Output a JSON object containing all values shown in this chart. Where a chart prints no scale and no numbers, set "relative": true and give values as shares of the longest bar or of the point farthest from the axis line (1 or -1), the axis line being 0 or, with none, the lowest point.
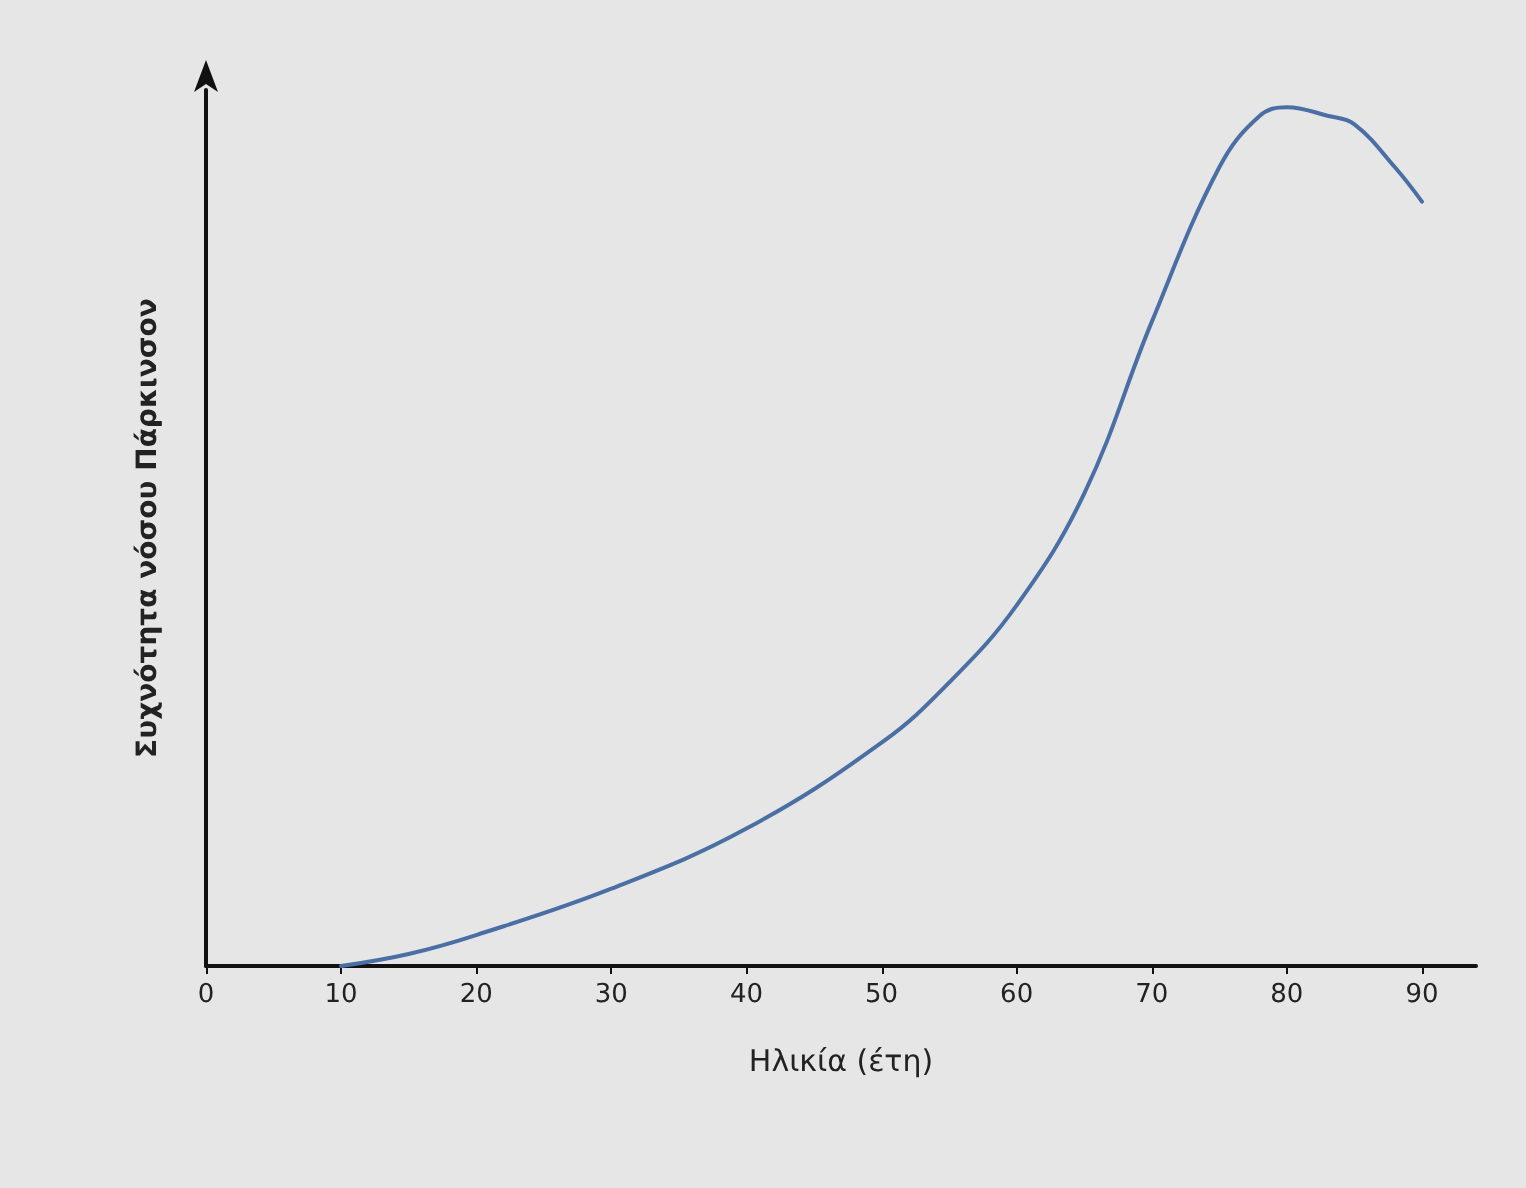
{
  "chart_data": {
    "type": "line",
    "xlabel": "Ηλικία (έτη)",
    "ylabel": "Συχνότητα νόσου Πάρκινσον",
    "relative": true,
    "x": [
      10,
      15,
      20,
      30,
      40,
      50,
      55,
      60,
      65,
      70,
      75,
      78,
      80,
      83,
      85,
      88,
      90
    ],
    "series": [
      {
        "color": "#4a6fa5",
        "values": [
          0,
          0.014,
          0.036,
          0.09,
          0.16,
          0.26,
          0.33,
          0.42,
          0.55,
          0.75,
          0.93,
          0.99,
          1,
          0.99,
          0.98,
          0.93,
          0.89
        ]
      }
    ],
    "xlim": [
      0,
      94
    ],
    "xticks": [
      0,
      10,
      20,
      30,
      40,
      50,
      60,
      70,
      80,
      90
    ],
    "grid": false,
    "marker": "none",
    "line_style": "solid"
  }
}
